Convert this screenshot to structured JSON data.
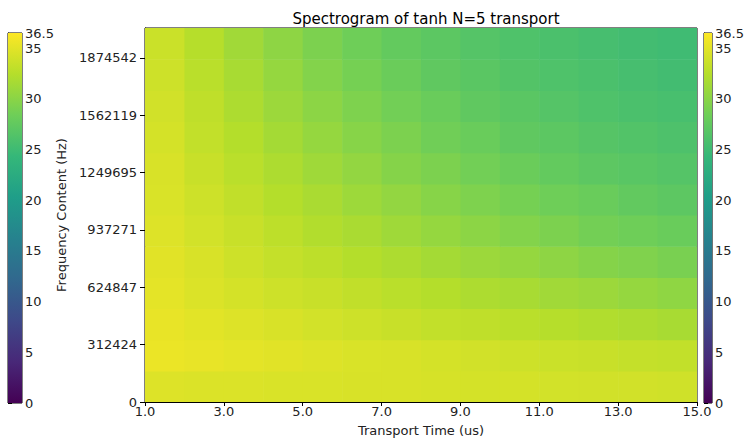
{
  "chart_data": {
    "type": "heatmap",
    "title": "Spectrogram of tanh N=5 transport",
    "x_label": "Transport Time (us)",
    "y_label": "Frequency Content (Hz)",
    "xlim": [
      1,
      15
    ],
    "xticks": [
      {
        "value": 1,
        "label": "1.0"
      },
      {
        "value": 3,
        "label": "3.0"
      },
      {
        "value": 5,
        "label": "5.0"
      },
      {
        "value": 7,
        "label": "7.0"
      },
      {
        "value": 9,
        "label": "9.0"
      },
      {
        "value": 11,
        "label": "11.0"
      },
      {
        "value": 13,
        "label": "13.0"
      },
      {
        "value": 15,
        "label": "15.0"
      }
    ],
    "ylim": [
      0,
      2037000
    ],
    "yticks": [
      0,
      312424,
      624847,
      937271,
      1249695,
      1562119,
      1874542
    ],
    "x_edges": [
      1,
      2,
      3,
      4,
      5,
      6,
      7,
      8,
      9,
      10,
      11,
      12,
      13,
      14,
      15
    ],
    "y_edges": [
      0,
      169750,
      339500,
      509250,
      679000,
      848750,
      1018500,
      1188250,
      1358000,
      1527750,
      1697500,
      1867250,
      2037000
    ],
    "cells": [
      [
        34.7,
        34.6,
        34.6,
        34.5,
        34.5,
        34.4,
        34.4,
        34.3,
        34.2,
        34.2,
        34.1,
        34.0,
        34.0,
        33.9
      ],
      [
        35.5,
        35.3,
        35.1,
        34.9,
        34.7,
        34.5,
        34.4,
        34.2,
        34.0,
        33.8,
        33.6,
        33.5,
        33.3,
        33.2
      ],
      [
        35.3,
        35.0,
        34.7,
        34.4,
        34.1,
        33.8,
        33.5,
        33.2,
        33.0,
        32.7,
        32.5,
        32.2,
        32.0,
        31.7
      ],
      [
        35.1,
        34.6,
        34.2,
        33.8,
        33.5,
        33.1,
        32.7,
        32.4,
        32.0,
        31.7,
        31.3,
        31.0,
        30.6,
        30.3
      ],
      [
        34.9,
        34.4,
        33.8,
        33.3,
        32.9,
        32.4,
        32.0,
        31.5,
        31.0,
        30.6,
        30.2,
        29.7,
        29.4,
        29.0
      ],
      [
        34.7,
        34.1,
        33.5,
        32.9,
        32.3,
        31.8,
        31.2,
        30.6,
        30.1,
        29.6,
        29.2,
        28.7,
        28.4,
        28.0
      ],
      [
        34.5,
        33.8,
        33.1,
        32.4,
        31.8,
        31.1,
        30.5,
        29.8,
        29.3,
        28.8,
        28.4,
        28.0,
        27.5,
        27.2
      ],
      [
        34.4,
        33.5,
        32.7,
        32.0,
        31.2,
        30.5,
        29.7,
        29.2,
        28.6,
        28.1,
        27.6,
        27.2,
        26.9,
        26.6
      ],
      [
        34.2,
        33.2,
        32.4,
        31.5,
        30.6,
        29.8,
        29.2,
        28.5,
        28.0,
        27.4,
        27.1,
        26.7,
        26.4,
        26.1
      ],
      [
        34.0,
        33.0,
        32.0,
        31.0,
        30.1,
        29.3,
        28.6,
        28.0,
        27.4,
        27.0,
        26.6,
        26.2,
        25.9,
        25.7
      ],
      [
        33.8,
        32.7,
        31.7,
        30.6,
        29.6,
        28.8,
        28.1,
        27.4,
        27.0,
        26.5,
        26.2,
        25.9,
        25.6,
        25.3
      ],
      [
        33.6,
        32.5,
        31.3,
        30.2,
        29.2,
        28.4,
        27.6,
        27.1,
        26.6,
        26.2,
        25.9,
        25.6,
        25.3,
        25.1
      ]
    ],
    "colorbar": {
      "range": [
        0,
        36.5
      ],
      "ticks": [
        0,
        5,
        10,
        15,
        20,
        25,
        30,
        35
      ]
    }
  }
}
